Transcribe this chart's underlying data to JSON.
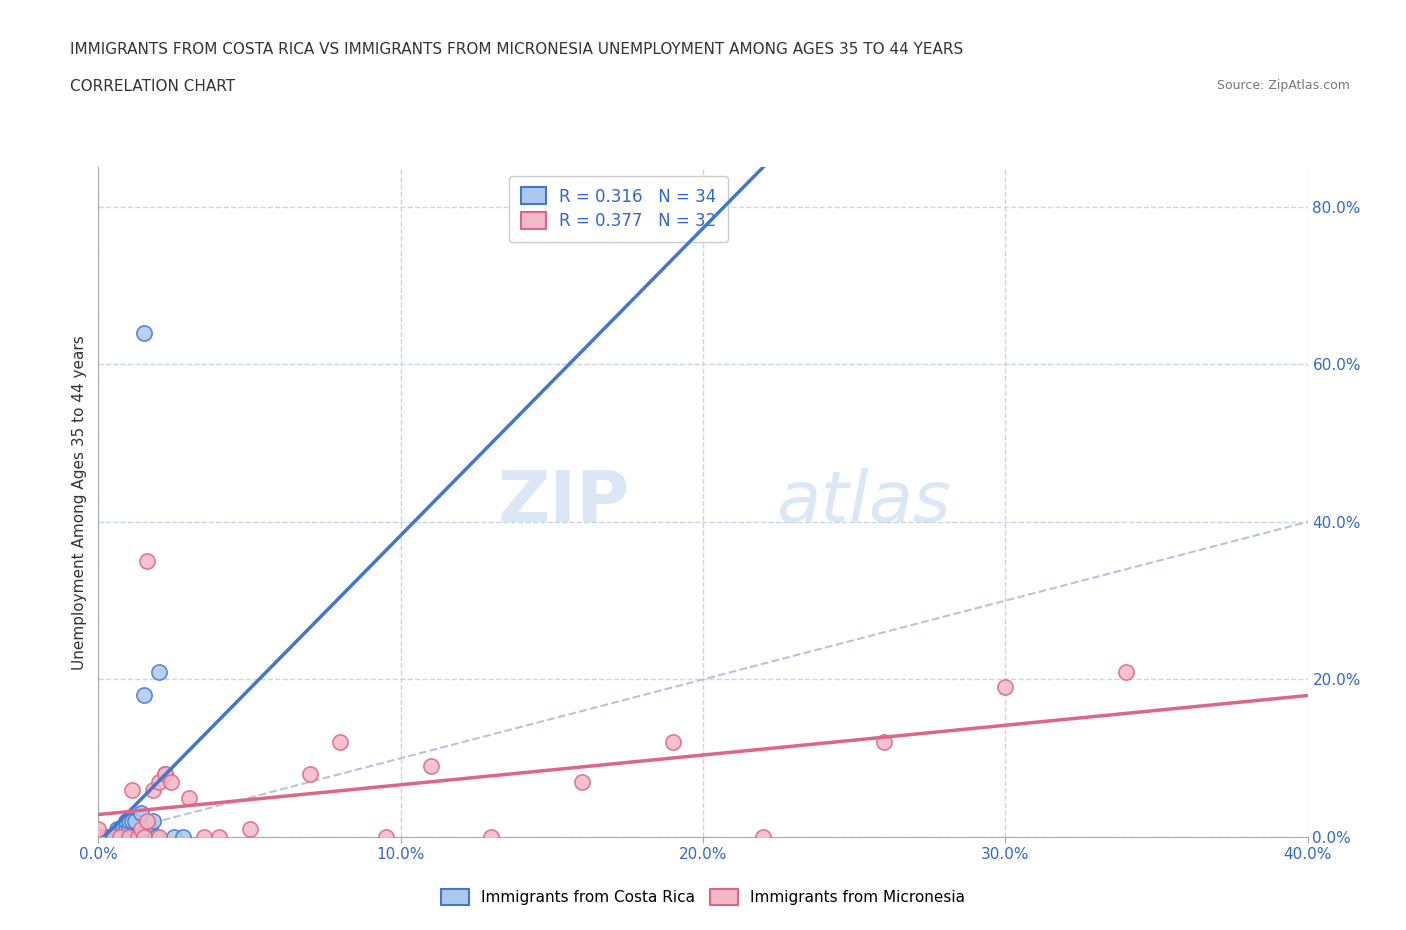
{
  "title_line1": "IMMIGRANTS FROM COSTA RICA VS IMMIGRANTS FROM MICRONESIA UNEMPLOYMENT AMONG AGES 35 TO 44 YEARS",
  "title_line2": "CORRELATION CHART",
  "source": "Source: ZipAtlas.com",
  "ylabel": "Unemployment Among Ages 35 to 44 years",
  "xlim": [
    0.0,
    0.4
  ],
  "ylim": [
    0.0,
    0.85
  ],
  "xticks": [
    0.0,
    0.1,
    0.2,
    0.3,
    0.4
  ],
  "xtick_labels": [
    "0.0%",
    "10.0%",
    "20.0%",
    "30.0%",
    "40.0%"
  ],
  "yticks_right": [
    0.0,
    0.2,
    0.4,
    0.6,
    0.8
  ],
  "ytick_labels_right": [
    "0.0%",
    "20.0%",
    "40.0%",
    "60.0%",
    "80.0%"
  ],
  "costa_rica_color": "#adc8ee",
  "costa_rica_line_color": "#4477cc",
  "micronesia_color": "#f5b8c8",
  "micronesia_line_color": "#dd6688",
  "diagonal_color": "#b8c4d8",
  "r_costa_rica": 0.316,
  "n_costa_rica": 34,
  "r_micronesia": 0.377,
  "n_micronesia": 32,
  "watermark_zip": "ZIP",
  "watermark_atlas": "atlas",
  "background_color": "#ffffff",
  "grid_color": "#c8d4e8",
  "costa_rica_x": [
    0.0,
    0.002,
    0.003,
    0.004,
    0.005,
    0.005,
    0.006,
    0.006,
    0.007,
    0.007,
    0.008,
    0.008,
    0.009,
    0.009,
    0.01,
    0.01,
    0.01,
    0.011,
    0.011,
    0.012,
    0.012,
    0.013,
    0.014,
    0.015,
    0.015,
    0.016,
    0.017,
    0.018,
    0.019,
    0.02,
    0.022,
    0.025,
    0.028,
    0.015
  ],
  "costa_rica_y": [
    0.0,
    0.0,
    0.0,
    0.0,
    0.0,
    0.0,
    0.0,
    0.01,
    0.0,
    0.0,
    0.0,
    0.01,
    0.01,
    0.02,
    0.0,
    0.01,
    0.02,
    0.0,
    0.02,
    0.0,
    0.02,
    0.0,
    0.03,
    0.0,
    0.18,
    0.0,
    0.01,
    0.02,
    0.0,
    0.21,
    0.08,
    0.0,
    0.0,
    0.64
  ],
  "micronesia_x": [
    0.0,
    0.0,
    0.0,
    0.005,
    0.007,
    0.01,
    0.011,
    0.013,
    0.014,
    0.015,
    0.016,
    0.016,
    0.018,
    0.02,
    0.02,
    0.022,
    0.024,
    0.03,
    0.035,
    0.04,
    0.05,
    0.07,
    0.08,
    0.095,
    0.11,
    0.13,
    0.16,
    0.19,
    0.22,
    0.26,
    0.3,
    0.34
  ],
  "micronesia_y": [
    0.0,
    0.0,
    0.01,
    0.0,
    0.0,
    0.0,
    0.06,
    0.0,
    0.01,
    0.0,
    0.02,
    0.35,
    0.06,
    0.0,
    0.07,
    0.08,
    0.07,
    0.05,
    0.0,
    0.0,
    0.01,
    0.08,
    0.12,
    0.0,
    0.09,
    0.0,
    0.07,
    0.12,
    0.0,
    0.12,
    0.19,
    0.21
  ]
}
